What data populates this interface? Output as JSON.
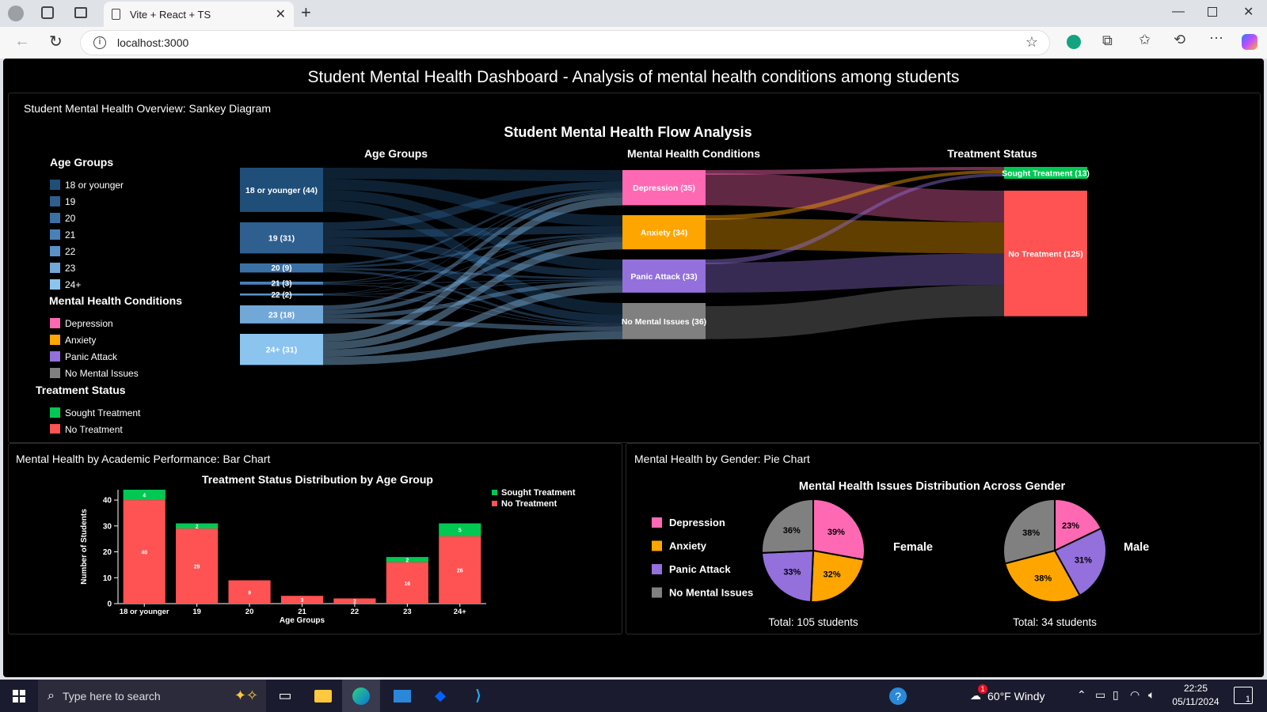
{
  "browser": {
    "tab_title": "Vite + React + TS",
    "url": "localhost:3000"
  },
  "dashboard": {
    "title": "Student Mental Health Dashboard - Analysis of mental health conditions among students"
  },
  "sankey_panel": {
    "title": "Student Mental Health Overview: Sankey Diagram",
    "chart_title": "Student Mental Health Flow Analysis",
    "col_age": "Age Groups",
    "col_conditions": "Mental Health Conditions",
    "col_treatment": "Treatment Status",
    "legend": {
      "age_heading": "Age Groups",
      "age_items": [
        "18 or younger",
        "19",
        "20",
        "21",
        "22",
        "23",
        "24+"
      ],
      "cond_heading": "Mental Health Conditions",
      "cond_items": [
        "Depression",
        "Anxiety",
        "Panic Attack",
        "No Mental Issues"
      ],
      "treat_heading": "Treatment Status",
      "treat_items": [
        "Sought Treatment",
        "No Treatment"
      ]
    }
  },
  "chart_data": [
    {
      "type": "sankey",
      "title": "Student Mental Health Flow Analysis",
      "nodes": [
        {
          "label": "18 or younger (44)",
          "value": 44,
          "color": "#1f4e79"
        },
        {
          "label": "19 (31)",
          "value": 31,
          "color": "#2e5f8f"
        },
        {
          "label": "20 (9)",
          "value": 9,
          "color": "#3b70a5"
        },
        {
          "label": "21 (3)",
          "value": 3,
          "color": "#4a80b8"
        },
        {
          "label": "22 (2)",
          "value": 2,
          "color": "#5a92c8"
        },
        {
          "label": "23 (18)",
          "value": 18,
          "color": "#72a8d8"
        },
        {
          "label": "24+ (31)",
          "value": 31,
          "color": "#8cc4f0"
        },
        {
          "label": "Depression (35)",
          "value": 35,
          "color": "#ff69b4"
        },
        {
          "label": "Anxiety (34)",
          "value": 34,
          "color": "#ffa500"
        },
        {
          "label": "Panic Attack (33)",
          "value": 33,
          "color": "#9370db"
        },
        {
          "label": "No Mental Issues (36)",
          "value": 36,
          "color": "#808080"
        },
        {
          "label": "Sought Treatment (13)",
          "value": 13,
          "color": "#00c853"
        },
        {
          "label": "No Treatment (125)",
          "value": 125,
          "color": "#ff5252"
        }
      ]
    },
    {
      "type": "bar",
      "title": "Treatment Status Distribution by Age Group",
      "xlabel": "Age Groups",
      "ylabel": "Number of Students",
      "categories": [
        "18 or younger",
        "19",
        "20",
        "21",
        "22",
        "23",
        "24+"
      ],
      "ylim": [
        0,
        44
      ],
      "yticks": [
        0,
        10,
        20,
        30,
        40
      ],
      "series": [
        {
          "name": "No Treatment",
          "color": "#ff5252",
          "values": [
            40,
            29,
            9,
            3,
            2,
            16,
            26
          ]
        },
        {
          "name": "Sought Treatment",
          "color": "#00c853",
          "values": [
            4,
            2,
            0,
            0,
            0,
            2,
            5
          ]
        }
      ],
      "legend": [
        "Sought Treatment",
        "No Treatment"
      ]
    },
    {
      "type": "pie",
      "title": "Mental Health Issues Distribution Across Gender",
      "legend": [
        {
          "name": "Depression",
          "color": "#ff69b4"
        },
        {
          "name": "Anxiety",
          "color": "#ffa500"
        },
        {
          "name": "Panic Attack",
          "color": "#9370db"
        },
        {
          "name": "No Mental Issues",
          "color": "#808080"
        }
      ],
      "pies": [
        {
          "label": "Female",
          "total_text": "Total: 105 students",
          "slices": [
            {
              "name": "Depression",
              "pct": 39,
              "raw": 19.5
            },
            {
              "name": "Anxiety",
              "pct": 32,
              "raw": 16
            },
            {
              "name": "Panic Attack",
              "pct": 33,
              "raw": 16.5
            },
            {
              "name": "No Mental Issues",
              "pct": 36,
              "raw": 18
            }
          ]
        },
        {
          "label": "Male",
          "total_text": "Total: 34 students",
          "slices": [
            {
              "name": "Depression",
              "pct": 23,
              "raw": 16
            },
            {
              "name": "Panic Attack",
              "pct": 31,
              "raw": 21.5
            },
            {
              "name": "Anxiety",
              "pct": 38,
              "raw": 26
            },
            {
              "name": "No Mental Issues",
              "pct": 38,
              "raw": 26
            }
          ]
        }
      ]
    }
  ],
  "bar_panel": {
    "title": "Mental Health by Academic Performance: Bar Chart"
  },
  "pie_panel": {
    "title": "Mental Health by Gender: Pie Chart"
  },
  "taskbar": {
    "search_placeholder": "Type here to search",
    "weather": "60°F  Windy",
    "time": "22:25",
    "date": "05/11/2024",
    "notification_count": "1"
  }
}
